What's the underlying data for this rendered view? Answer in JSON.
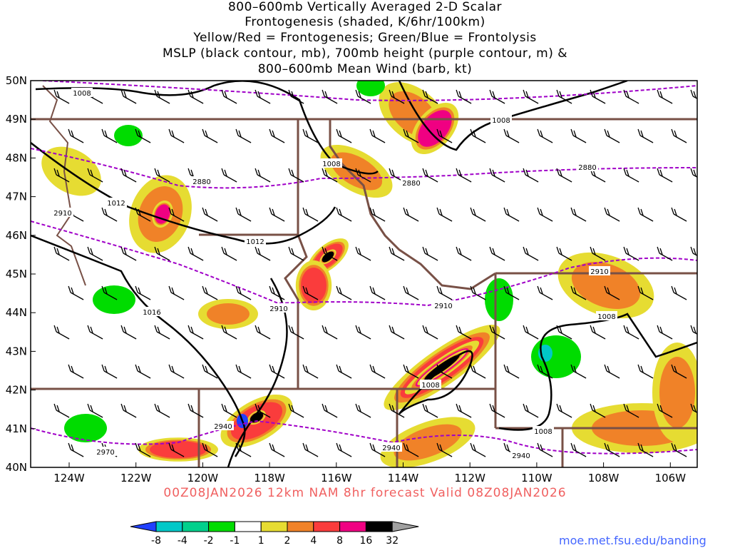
{
  "title_lines": [
    "800–600mb Vertically Averaged 2-D Scalar",
    "Frontogenesis (shaded, K/6hr/100km)",
    "Yellow/Red = Frontogenesis;  Green/Blue = Frontolysis",
    "MSLP (black contour, mb), 700mb height (purple contour, m) &",
    "800–600mb Mean Wind (barb, kt)"
  ],
  "valid_text": "00Z08JAN2026 12km NAM 8hr forecast Valid 08Z08JAN2026",
  "credit": "moe.met.fsu.edu/banding",
  "lat_labels": [
    "50N",
    "49N",
    "48N",
    "47N",
    "46N",
    "45N",
    "44N",
    "43N",
    "42N",
    "41N",
    "40N"
  ],
  "lon_labels": [
    "124W",
    "122W",
    "120W",
    "118W",
    "116W",
    "114W",
    "112W",
    "110W",
    "108W",
    "106W"
  ],
  "colorbar": {
    "labels": [
      "-8",
      "-4",
      "-2",
      "-1",
      "1",
      "2",
      "4",
      "8",
      "16",
      "32"
    ],
    "colors": [
      "#2040ff",
      "#00c8c8",
      "#00d08c",
      "#00dc00",
      "#ffffff",
      "#e6dc32",
      "#f08228",
      "#fa3c3c",
      "#f00082",
      "#000000",
      "#a0a0a0"
    ]
  },
  "contour_labels": {
    "mslp": [
      "1008",
      "1008",
      "1008",
      "1012",
      "1012",
      "1016",
      "1008",
      "1008",
      "1008"
    ],
    "height": [
      "2880",
      "2880",
      "2880",
      "2910",
      "2910",
      "2910",
      "2910",
      "2940",
      "2940",
      "2970",
      "2940"
    ]
  },
  "colors": {
    "mslp": "#000000",
    "height": "#a000c8",
    "borders": "#785046"
  }
}
